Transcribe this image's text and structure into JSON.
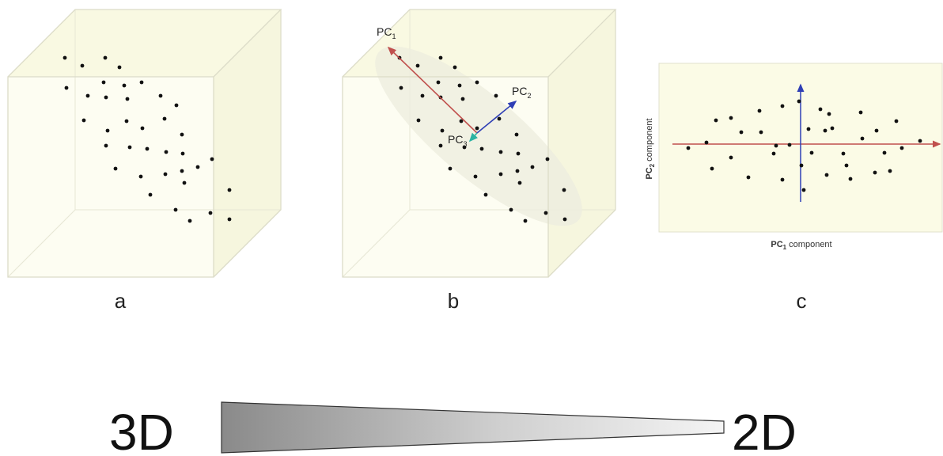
{
  "panels": {
    "a": {
      "label": "a"
    },
    "b": {
      "label": "b",
      "pc1_main": "PC",
      "pc1_sub": "1",
      "pc2_main": "PC",
      "pc2_sub": "2",
      "pc3_main": "PC",
      "pc3_sub": "3"
    },
    "c": {
      "label": "c",
      "xlabel_main": "PC",
      "xlabel_sub": "1",
      "xlabel_rest": " component",
      "ylabel_main": "PC",
      "ylabel_sub": "2",
      "ylabel_rest": " component"
    }
  },
  "reduction": {
    "from": "3D",
    "to": "2D"
  },
  "colors": {
    "cube_face": "#fbfbe6",
    "pc1_arrow": "#c0504d",
    "pc2_arrow": "#2f3fb5",
    "pc3_arrow": "#2bb3a3",
    "plot_bg": "#fbfbe6",
    "wedge_dark": "#8a8a8a",
    "wedge_light": "#f2f2f2"
  }
}
